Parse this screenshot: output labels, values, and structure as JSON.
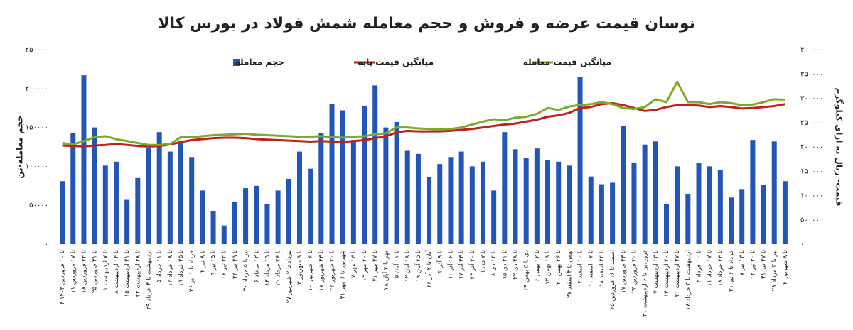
{
  "chart_data": {
    "type": "bar_line",
    "title": "نوسان قیمت عرضه و فروش و حجم معامله شمش فولاد در بورس کالا",
    "y_label": "حجم معامله-تن",
    "y2_label": "قیمت- ریال به ازای کیلوگرم",
    "categories": [
      "۴ تا ۱۰ فروردین ۱۴۰۳",
      "۱۱ تا ۱۷ فروردین",
      "۱۸ تا ۲۴ فروردین",
      "۲۵ تا ۳۱ فروردین",
      "۱ تا ۷ اردیبهشت",
      "۸ تا ۱۴ اردیبهشت",
      "۱۵ تا ۲۱ اردیبهشت",
      "۲۲ تا ۲۸ اردیبهشت",
      "۲۹ اردیبهشت تا ۴ خرداد",
      "۵ تا ۱۱ خرداد",
      "۱۲ تا ۱۸ خرداد",
      "۱۹ تا ۲۵ خرداد",
      "۲۶ خرداد تا ۱ تیر",
      "۲ تا ۸ تیر",
      "۹ تا ۱۵ تیر",
      "۱۶ تا ۲۲ تیر",
      "۲۳ تا ۲۹ تیر",
      "۳۰ تیر تا ۵ مرداد",
      "۶ تا ۱۲ مرداد",
      "۱۳ تا ۱۹ مرداد",
      "۲۰ تا ۲۶ مرداد",
      "۲۷ مرداد تا ۲ شهریور",
      "۳ تا ۹ شهریور",
      "۱۰ تا ۱۶ شهریور",
      "۱۷ تا ۲۳ شهریور",
      "۲۴ تا ۳۰ شهریور",
      "۳۱ شهریور تا ۶ مهر",
      "۷ تا ۱۳ مهر",
      "۱۴ تا ۲۰ مهر",
      "۲۱ تا ۲۷ مهر",
      "۲۸ مهر تا ۴ آبان",
      "۵ تا ۱۱ آبان",
      "۱۲ تا ۱۸ آبان",
      "۱۹ تا ۲۵ آبان",
      "۲۶ آبان تا ۲ آذر",
      "۳ تا ۹ آذر",
      "۱۰ تا ۱۶ آذر",
      "۱۷ تا ۲۳ آذر",
      "۲۴ تا ۳۰ آذر",
      "۱ تا ۷ دی",
      "۸ تا ۱۴ دی",
      "۱۵ تا ۲۱ دی",
      "۲۲ تا ۲۸ دی",
      "۲۹ دی تا ۵ بهمن",
      "۶ تا ۱۲ بهمن",
      "۱۳ تا ۱۹ بهمن",
      "۲۰ تا ۲۶ بهمن",
      "۲۷ بهمن تا ۳ اسفند",
      "۴ تا ۱۰ اسفند",
      "۱۱ تا ۱۷ اسفند",
      "۱۸ تا ۲۴ اسفند",
      "۲۵ اسفند تا ۱۶ فروردین",
      "۱۷ تا ۲۳ فروردین",
      "۲۴ تا ۳۰ فروردین",
      "۳۱ فروردین تا ۶ اردیبهشت",
      "۷ تا ۱۳ اردیبهشت",
      "۱۴ تا ۲۰ اردیبهشت",
      "۲۱ تا ۲۷ اردیبهشت",
      "۲۸ اردیبهشت تا ۳ خرداد",
      "۴ تا ۱۰ خرداد",
      "۱۱ تا ۱۷ خرداد",
      "۱۸ تا ۲۴ خرداد",
      "۳۱ خرداد تا ۶ تیر",
      "۷ تا ۱۳ تیر",
      "۱۴ تا ۲۰ تیر",
      "۲۱ تا ۲۷ تیر",
      "۲۸ تیر تا ۳ مرداد",
      "۲ تا ۸ شهریور"
    ],
    "series": [
      {
        "name": "حجم معامله",
        "type": "bar",
        "color": "#2255b8",
        "values": [
          81000,
          143000,
          217000,
          150000,
          101000,
          106000,
          57000,
          85000,
          124000,
          144000,
          119000,
          132000,
          112000,
          69000,
          42000,
          24000,
          54000,
          72000,
          75000,
          52000,
          69000,
          84000,
          119000,
          97000,
          143000,
          180000,
          172000,
          134000,
          178000,
          204000,
          150000,
          157000,
          120000,
          116000,
          86000,
          103000,
          112000,
          119000,
          100000,
          106000,
          69000,
          144000,
          122000,
          111000,
          123000,
          108000,
          106000,
          101000,
          215000,
          87000,
          77000,
          79000,
          152000,
          104000,
          128000,
          132000,
          52000,
          100000,
          64000,
          104000,
          100000,
          95000,
          60000,
          70000,
          134000,
          76000,
          132000,
          81000
        ]
      },
      {
        "name": "میانگین قیمت پایه",
        "type": "line",
        "axis": "y2",
        "color": "#c0201e",
        "values": [
          203000,
          202000,
          201000,
          203000,
          204000,
          206000,
          204000,
          202000,
          201000,
          202000,
          205000,
          210000,
          214000,
          216000,
          218000,
          219000,
          219000,
          218000,
          216000,
          215000,
          214000,
          213000,
          212000,
          211000,
          212000,
          211000,
          210000,
          212000,
          214000,
          218000,
          222000,
          230000,
          233000,
          232000,
          232000,
          232000,
          233000,
          235000,
          237000,
          240000,
          243000,
          246000,
          248000,
          252000,
          256000,
          262000,
          265000,
          270000,
          280000,
          282000,
          288000,
          290000,
          286000,
          280000,
          274000,
          276000,
          282000,
          286000,
          286000,
          285000,
          282000,
          284000,
          282000,
          279000,
          280000,
          282000,
          284000,
          288000
        ]
      },
      {
        "name": "میانگین قیمت معامله",
        "type": "line",
        "axis": "y2",
        "color": "#7aab2a",
        "values": [
          208000,
          205000,
          212000,
          220000,
          222000,
          216000,
          212000,
          208000,
          204000,
          204000,
          206000,
          220000,
          220000,
          222000,
          224000,
          225000,
          226000,
          227000,
          225000,
          224000,
          223000,
          222000,
          221000,
          221000,
          222000,
          220000,
          219000,
          221000,
          222000,
          226000,
          228000,
          240000,
          240000,
          238000,
          237000,
          236000,
          237000,
          240000,
          246000,
          252000,
          257000,
          255000,
          260000,
          262000,
          268000,
          280000,
          276000,
          283000,
          286000,
          288000,
          292000,
          288000,
          280000,
          278000,
          282000,
          298000,
          292000,
          334000,
          292000,
          292000,
          288000,
          292000,
          290000,
          286000,
          287000,
          292000,
          298000,
          297000
        ]
      }
    ],
    "ylim": [
      0,
      250000
    ],
    "yticks": [
      {
        "value": 0,
        "label": "۰"
      },
      {
        "value": 50000,
        "label": "۵۰۰۰۰"
      },
      {
        "value": 100000,
        "label": "۱۰۰۰۰۰"
      },
      {
        "value": 150000,
        "label": "۱۵۰۰۰۰"
      },
      {
        "value": 200000,
        "label": "۲۰۰۰۰۰"
      },
      {
        "value": 250000,
        "label": "۲۵۰۰۰۰"
      }
    ],
    "y2lim": [
      0,
      400000
    ],
    "y2ticks": [
      {
        "value": 0,
        "label": "۰"
      },
      {
        "value": 50000,
        "label": "۵۰۰۰۰"
      },
      {
        "value": 100000,
        "label": "۱۰۰۰۰۰"
      },
      {
        "value": 150000,
        "label": "۱۵۰۰۰۰"
      },
      {
        "value": 200000,
        "label": "۲۰۰۰۰۰"
      },
      {
        "value": 250000,
        "label": "۲۵۰۰۰۰"
      },
      {
        "value": 300000,
        "label": "۳۰۰۰۰۰"
      },
      {
        "value": 350000,
        "label": "۳۵۰۰۰۰"
      },
      {
        "value": 400000,
        "label": "۴۰۰۰۰۰"
      }
    ],
    "grid": false,
    "legend": "top"
  }
}
